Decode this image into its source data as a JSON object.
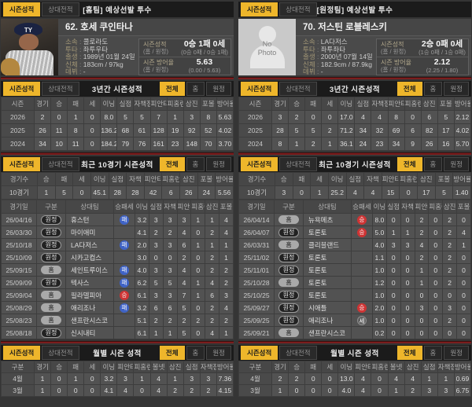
{
  "ui": {
    "tabs": {
      "season": "시즌성적",
      "h2h": "상대전적"
    },
    "filters": [
      "전체",
      "홈",
      "원정"
    ],
    "section_titles": {
      "three_year": "3년간 시즌성적",
      "recent10": "최근 10경기 시즌성적",
      "monthly": "월별 시즌 성적"
    },
    "badge_classes": {
      "홈": "home",
      "원정": "away",
      "승": "win",
      "패": "loss",
      "세": "save"
    },
    "colors": {
      "accent_yellow": "#eeb62b",
      "divider_red": "#7b1d1d",
      "badge_win": "#ce3434",
      "badge_loss": "#3f63c6",
      "badge_save": "#5f5f5f"
    }
  },
  "table_headers": {
    "three_year": [
      "시즌",
      "경기",
      "승",
      "패",
      "세",
      "이닝",
      "실점",
      "자책점",
      "피안타",
      "피홈런",
      "삼진",
      "포볼",
      "방어율"
    ],
    "recent10": [
      "경기수",
      "승",
      "패",
      "세",
      "이닝",
      "실점",
      "자책",
      "피안타",
      "피홈런",
      "삼진",
      "포볼",
      "방어율"
    ],
    "gamelog": [
      "경기일",
      "구분",
      "상대팀",
      "승패세",
      "이닝",
      "실점",
      "자책",
      "피안타",
      "피홈런",
      "삼진",
      "포볼"
    ],
    "monthly": [
      "구분",
      "경기",
      "승",
      "패",
      "세",
      "이닝",
      "피안타",
      "피홈런",
      "볼넷",
      "삼진",
      "실점",
      "자책점",
      "방어율"
    ]
  },
  "home": {
    "header_title": "[홈팀] 예상선발 투수",
    "player": {
      "name": "62. 호세 쿠인타나",
      "cap_logo": "TY",
      "info": [
        {
          "label": "소속",
          "value": "콜로라도"
        },
        {
          "label": "투타",
          "value": "좌투우타"
        },
        {
          "label": "출생",
          "value": "1989년 01월 24일"
        },
        {
          "label": "신체",
          "value": "183cm / 97kg"
        },
        {
          "label": "데뷔",
          "value": "-"
        }
      ],
      "record": {
        "label": "시즌성적",
        "label_sub": "(홈 / 원정)",
        "value": "0승 1패 0세",
        "value_sub": "(0승 0패 / 0승 1패)"
      },
      "era": {
        "label": "시즌 방어율",
        "label_sub": "(홈 / 원정)",
        "value": "5.63",
        "value_sub": "(0.00 / 5.63)"
      }
    },
    "three_year_rows": [
      [
        "2026",
        "2",
        "0",
        "1",
        "0",
        "8.0",
        "5",
        "5",
        "7",
        "1",
        "3",
        "8",
        "5.63"
      ],
      [
        "2025",
        "26",
        "11",
        "8",
        "0",
        "136.2",
        "68",
        "61",
        "128",
        "19",
        "92",
        "52",
        "4.02"
      ],
      [
        "2024",
        "34",
        "10",
        "11",
        "0",
        "184.2",
        "79",
        "76",
        "161",
        "23",
        "148",
        "70",
        "3.70"
      ]
    ],
    "recent10_rows": [
      [
        "10경기",
        "1",
        "5",
        "0",
        "45.1",
        "28",
        "28",
        "42",
        "6",
        "26",
        "24",
        "5.56"
      ]
    ],
    "gamelog_rows": [
      [
        "26/04/16",
        "원정",
        "휴스턴",
        "패",
        "3.2",
        "3",
        "3",
        "3",
        "1",
        "1",
        "4"
      ],
      [
        "26/03/30",
        "원정",
        "마이애미",
        "",
        "4.1",
        "2",
        "2",
        "4",
        "0",
        "2",
        "4"
      ],
      [
        "25/10/18",
        "원정",
        "LA다저스",
        "패",
        "2.0",
        "3",
        "3",
        "6",
        "1",
        "1",
        "1"
      ],
      [
        "25/10/09",
        "원정",
        "시카고컵스",
        "",
        "3.0",
        "0",
        "0",
        "2",
        "0",
        "2",
        "1"
      ],
      [
        "25/09/15",
        "홈",
        "세인트루이스",
        "패",
        "4.0",
        "3",
        "3",
        "4",
        "0",
        "2",
        "2"
      ],
      [
        "25/09/09",
        "원정",
        "텍사스",
        "패",
        "6.2",
        "5",
        "5",
        "4",
        "1",
        "4",
        "2"
      ],
      [
        "25/09/04",
        "홈",
        "필라델피아",
        "승",
        "6.1",
        "3",
        "3",
        "7",
        "1",
        "6",
        "3"
      ],
      [
        "25/08/29",
        "홈",
        "애리조나",
        "패",
        "3.2",
        "6",
        "6",
        "5",
        "0",
        "2",
        "4"
      ],
      [
        "25/08/23",
        "홈",
        "샌프란시스코",
        "",
        "5.1",
        "2",
        "2",
        "2",
        "2",
        "2",
        "2"
      ],
      [
        "25/08/18",
        "원정",
        "신시내티",
        "",
        "6.1",
        "1",
        "1",
        "5",
        "0",
        "4",
        "1"
      ]
    ],
    "monthly_rows": [
      [
        "4월",
        "1",
        "0",
        "1",
        "0",
        "3.2",
        "3",
        "1",
        "4",
        "1",
        "3",
        "3",
        "7.36"
      ],
      [
        "3월",
        "1",
        "0",
        "0",
        "0",
        "4.1",
        "4",
        "0",
        "4",
        "2",
        "2",
        "2",
        "4.15"
      ]
    ]
  },
  "away": {
    "header_title": "[원정팀] 예상선발 투수",
    "player": {
      "name": "70. 저스틴 로블레스키",
      "no_photo_text": "No\nPhoto",
      "info": [
        {
          "label": "소속",
          "value": "LA다저스"
        },
        {
          "label": "투타",
          "value": "좌투좌타"
        },
        {
          "label": "출생",
          "value": "2000년 07월 14일"
        },
        {
          "label": "신체",
          "value": "182.9cm / 87.9kg"
        },
        {
          "label": "데뷔",
          "value": "-"
        }
      ],
      "record": {
        "label": "시즌성적",
        "label_sub": "(홈 / 원정)",
        "value": "2승 0패 0세",
        "value_sub": "(1승 0패 / 1승 0패)"
      },
      "era": {
        "label": "시즌 방어율",
        "label_sub": "(홈 / 원정)",
        "value": "2.12",
        "value_sub": "(2.25 / 1.80)"
      }
    },
    "three_year_rows": [
      [
        "2026",
        "3",
        "2",
        "0",
        "0",
        "17.0",
        "4",
        "4",
        "8",
        "0",
        "6",
        "5",
        "2.12"
      ],
      [
        "2025",
        "28",
        "5",
        "5",
        "2",
        "71.2",
        "34",
        "32",
        "69",
        "6",
        "82",
        "17",
        "4.02"
      ],
      [
        "2024",
        "8",
        "1",
        "2",
        "1",
        "36.1",
        "24",
        "23",
        "34",
        "9",
        "26",
        "16",
        "5.70"
      ]
    ],
    "recent10_rows": [
      [
        "10경기",
        "3",
        "0",
        "1",
        "25.2",
        "4",
        "4",
        "15",
        "0",
        "17",
        "5",
        "1.40"
      ]
    ],
    "gamelog_rows": [
      [
        "26/04/14",
        "홈",
        "뉴욕메츠",
        "승",
        "8.0",
        "0",
        "0",
        "2",
        "0",
        "2",
        "0"
      ],
      [
        "26/04/07",
        "원정",
        "토론토",
        "승",
        "5.0",
        "1",
        "1",
        "2",
        "0",
        "2",
        "4"
      ],
      [
        "26/03/31",
        "홈",
        "클리블랜드",
        "",
        "4.0",
        "3",
        "3",
        "4",
        "0",
        "2",
        "1"
      ],
      [
        "25/11/02",
        "원정",
        "토론토",
        "",
        "1.1",
        "0",
        "0",
        "2",
        "0",
        "2",
        "0"
      ],
      [
        "25/11/01",
        "원정",
        "토론토",
        "",
        "1.0",
        "0",
        "0",
        "1",
        "0",
        "2",
        "0"
      ],
      [
        "25/10/28",
        "홈",
        "토론토",
        "",
        "1.2",
        "0",
        "0",
        "1",
        "0",
        "2",
        "0"
      ],
      [
        "25/10/25",
        "원정",
        "토론토",
        "",
        "1.0",
        "0",
        "0",
        "0",
        "0",
        "0",
        "0"
      ],
      [
        "25/09/27",
        "원정",
        "시애틀",
        "승",
        "2.0",
        "0",
        "0",
        "3",
        "0",
        "3",
        "0"
      ],
      [
        "25/09/25",
        "원정",
        "애리조나",
        "세",
        "1.0",
        "0",
        "0",
        "0",
        "0",
        "2",
        "0"
      ],
      [
        "25/09/21",
        "홈",
        "샌프란시스코",
        "",
        "0.2",
        "0",
        "0",
        "0",
        "0",
        "0",
        "0"
      ]
    ],
    "monthly_rows": [
      [
        "4월",
        "2",
        "2",
        "0",
        "0",
        "13.0",
        "4",
        "0",
        "4",
        "4",
        "1",
        "1",
        "0.69"
      ],
      [
        "3월",
        "1",
        "0",
        "0",
        "0",
        "4.0",
        "4",
        "0",
        "1",
        "2",
        "3",
        "3",
        "6.75"
      ]
    ]
  }
}
